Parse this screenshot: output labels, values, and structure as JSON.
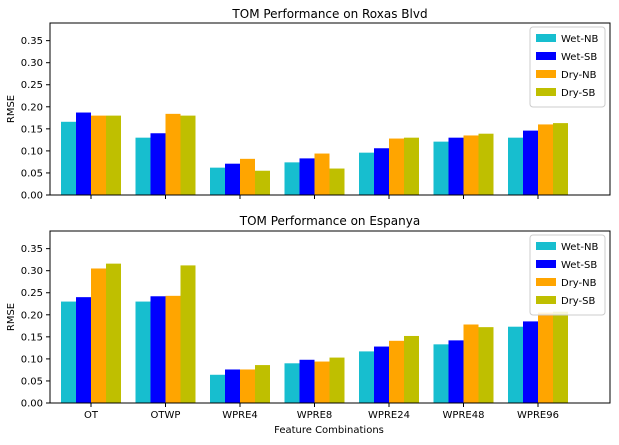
{
  "figure": {
    "xlabel": "Feature Combinations"
  },
  "chart_data": [
    {
      "type": "bar",
      "title": "TOM Performance on Roxas Blvd",
      "xlabel": "",
      "ylabel": "RMSE",
      "ylim": [
        0,
        0.39
      ],
      "yticks": [
        0.0,
        0.05,
        0.1,
        0.15,
        0.2,
        0.25,
        0.3,
        0.35
      ],
      "ytick_labels": [
        "0.00",
        "0.05",
        "0.10",
        "0.15",
        "0.20",
        "0.25",
        "0.30",
        "0.35"
      ],
      "categories": [
        "OT",
        "OTWP",
        "WPRE4",
        "WPRE8",
        "WPRE24",
        "WPRE48",
        "WPRE96"
      ],
      "show_category_labels": false,
      "legend_position": "top-right",
      "grid": false,
      "series": [
        {
          "name": "Wet-NB",
          "color": "#17becf",
          "values": [
            0.166,
            0.13,
            0.062,
            0.074,
            0.096,
            0.121,
            0.13
          ]
        },
        {
          "name": "Wet-SB",
          "color": "#0000ff",
          "values": [
            0.187,
            0.14,
            0.071,
            0.083,
            0.106,
            0.13,
            0.146
          ]
        },
        {
          "name": "Dry-NB",
          "color": "#ffa500",
          "values": [
            0.18,
            0.184,
            0.082,
            0.094,
            0.128,
            0.135,
            0.16
          ]
        },
        {
          "name": "Dry-SB",
          "color": "#bfbf00",
          "values": [
            0.18,
            0.18,
            0.055,
            0.06,
            0.13,
            0.139,
            0.163
          ]
        }
      ]
    },
    {
      "type": "bar",
      "title": "TOM Performance on Espanya",
      "xlabel": "Feature Combinations",
      "ylabel": "RMSE",
      "ylim": [
        0,
        0.39
      ],
      "yticks": [
        0.0,
        0.05,
        0.1,
        0.15,
        0.2,
        0.25,
        0.3,
        0.35
      ],
      "ytick_labels": [
        "0.00",
        "0.05",
        "0.10",
        "0.15",
        "0.20",
        "0.25",
        "0.30",
        "0.35"
      ],
      "categories": [
        "OT",
        "OTWP",
        "WPRE4",
        "WPRE8",
        "WPRE24",
        "WPRE48",
        "WPRE96"
      ],
      "show_category_labels": true,
      "legend_position": "top-right",
      "grid": false,
      "series": [
        {
          "name": "Wet-NB",
          "color": "#17becf",
          "values": [
            0.23,
            0.23,
            0.064,
            0.09,
            0.117,
            0.133,
            0.173
          ]
        },
        {
          "name": "Wet-SB",
          "color": "#0000ff",
          "values": [
            0.24,
            0.242,
            0.076,
            0.098,
            0.128,
            0.142,
            0.185
          ]
        },
        {
          "name": "Dry-NB",
          "color": "#ffa500",
          "values": [
            0.305,
            0.243,
            0.076,
            0.094,
            0.141,
            0.178,
            0.205
          ]
        },
        {
          "name": "Dry-SB",
          "color": "#bfbf00",
          "values": [
            0.316,
            0.312,
            0.086,
            0.103,
            0.152,
            0.172,
            0.207
          ]
        }
      ]
    }
  ]
}
